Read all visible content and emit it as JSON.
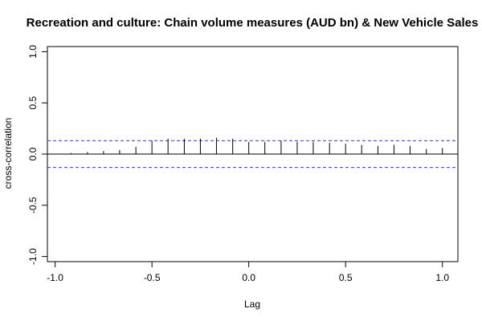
{
  "chart_data": {
    "type": "bar",
    "title": "Recreation and culture: Chain volume measures (AUD bn) & New Vehicle Sales",
    "xlabel": "Lag",
    "ylabel": "cross-correlation",
    "xlim": [
      -1.04,
      1.08
    ],
    "ylim": [
      -1.05,
      1.05
    ],
    "x_ticks": [
      {
        "value": -1.0,
        "label": "-1.0"
      },
      {
        "value": -0.5,
        "label": "-0.5"
      },
      {
        "value": 0.0,
        "label": "0.0"
      },
      {
        "value": 0.5,
        "label": "0.5"
      },
      {
        "value": 1.0,
        "label": "1.0"
      }
    ],
    "y_ticks": [
      {
        "value": -1.0,
        "label": "-1.0"
      },
      {
        "value": -0.5,
        "label": "-0.5"
      },
      {
        "value": 0.0,
        "label": "0.0"
      },
      {
        "value": 0.5,
        "label": "0.5"
      },
      {
        "value": 1.0,
        "label": "1.0"
      }
    ],
    "x": [
      -1.0,
      -0.917,
      -0.833,
      -0.75,
      -0.667,
      -0.583,
      -0.5,
      -0.417,
      -0.333,
      -0.25,
      -0.167,
      -0.083,
      0.0,
      0.083,
      0.167,
      0.25,
      0.333,
      0.417,
      0.5,
      0.583,
      0.667,
      0.75,
      0.833,
      0.917,
      1.0
    ],
    "values": [
      0.0,
      0.01,
      0.02,
      0.03,
      0.04,
      0.07,
      0.13,
      0.15,
      0.15,
      0.15,
      0.16,
      0.15,
      0.12,
      0.12,
      0.13,
      0.12,
      0.12,
      0.11,
      0.1,
      0.09,
      0.08,
      0.09,
      0.08,
      0.05,
      0.06
    ],
    "confidence_band": 0.13,
    "colors": {
      "spike": "#000000",
      "ci": "#3333ff"
    },
    "grid": false
  }
}
